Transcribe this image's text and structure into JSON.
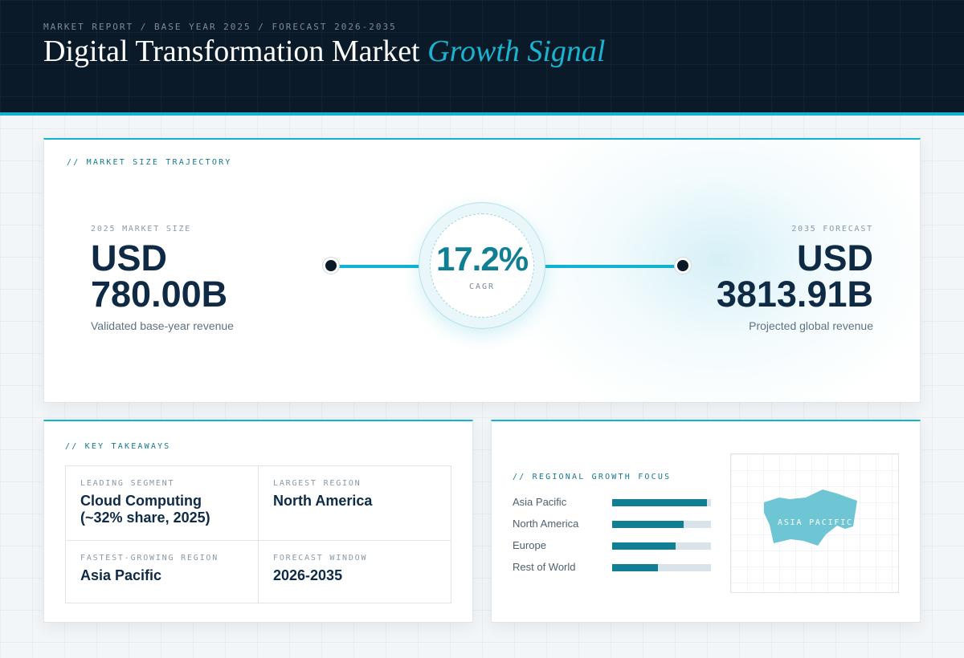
{
  "header": {
    "eyebrow": "MARKET REPORT / BASE YEAR 2025 / FORECAST 2026-2035",
    "title_main": "Digital Transformation Market ",
    "title_accent": "Growth Signal"
  },
  "trajectory": {
    "section_label": "// MARKET SIZE TRAJECTORY",
    "start": {
      "label": "2025 MARKET SIZE",
      "currency": "USD",
      "value": "780.00B",
      "caption": "Validated base-year revenue"
    },
    "cagr": {
      "value": "17.2%",
      "label": "CAGR"
    },
    "end": {
      "label": "2035 FORECAST",
      "currency": "USD",
      "value": "3813.91B",
      "caption": "Projected global revenue"
    }
  },
  "takeaways": {
    "section_label": "// KEY TAKEAWAYS",
    "items": [
      {
        "label": "LEADING SEGMENT",
        "value_line1": "Cloud Computing",
        "value_line2": "(~32% share, 2025)"
      },
      {
        "label": "LARGEST REGION",
        "value_line1": "North America"
      },
      {
        "label": "FASTEST-GROWING REGION",
        "value_line1": "Asia Pacific"
      },
      {
        "label": "FORECAST WINDOW",
        "value_line1": "2026-2035"
      }
    ]
  },
  "regional": {
    "section_label": "// REGIONAL GROWTH FOCUS",
    "bars": [
      {
        "name": "Asia Pacific",
        "level": 0.96
      },
      {
        "name": "North America",
        "level": 0.72
      },
      {
        "name": "Europe",
        "level": 0.64
      },
      {
        "name": "Rest of World",
        "level": 0.46
      }
    ],
    "map_label": "ASIA PACIFIC"
  },
  "colors": {
    "accent": "#12b3cf",
    "accent_dark": "#117f93",
    "navy": "#0b1a28",
    "map_fill": "#6ec5d3"
  }
}
